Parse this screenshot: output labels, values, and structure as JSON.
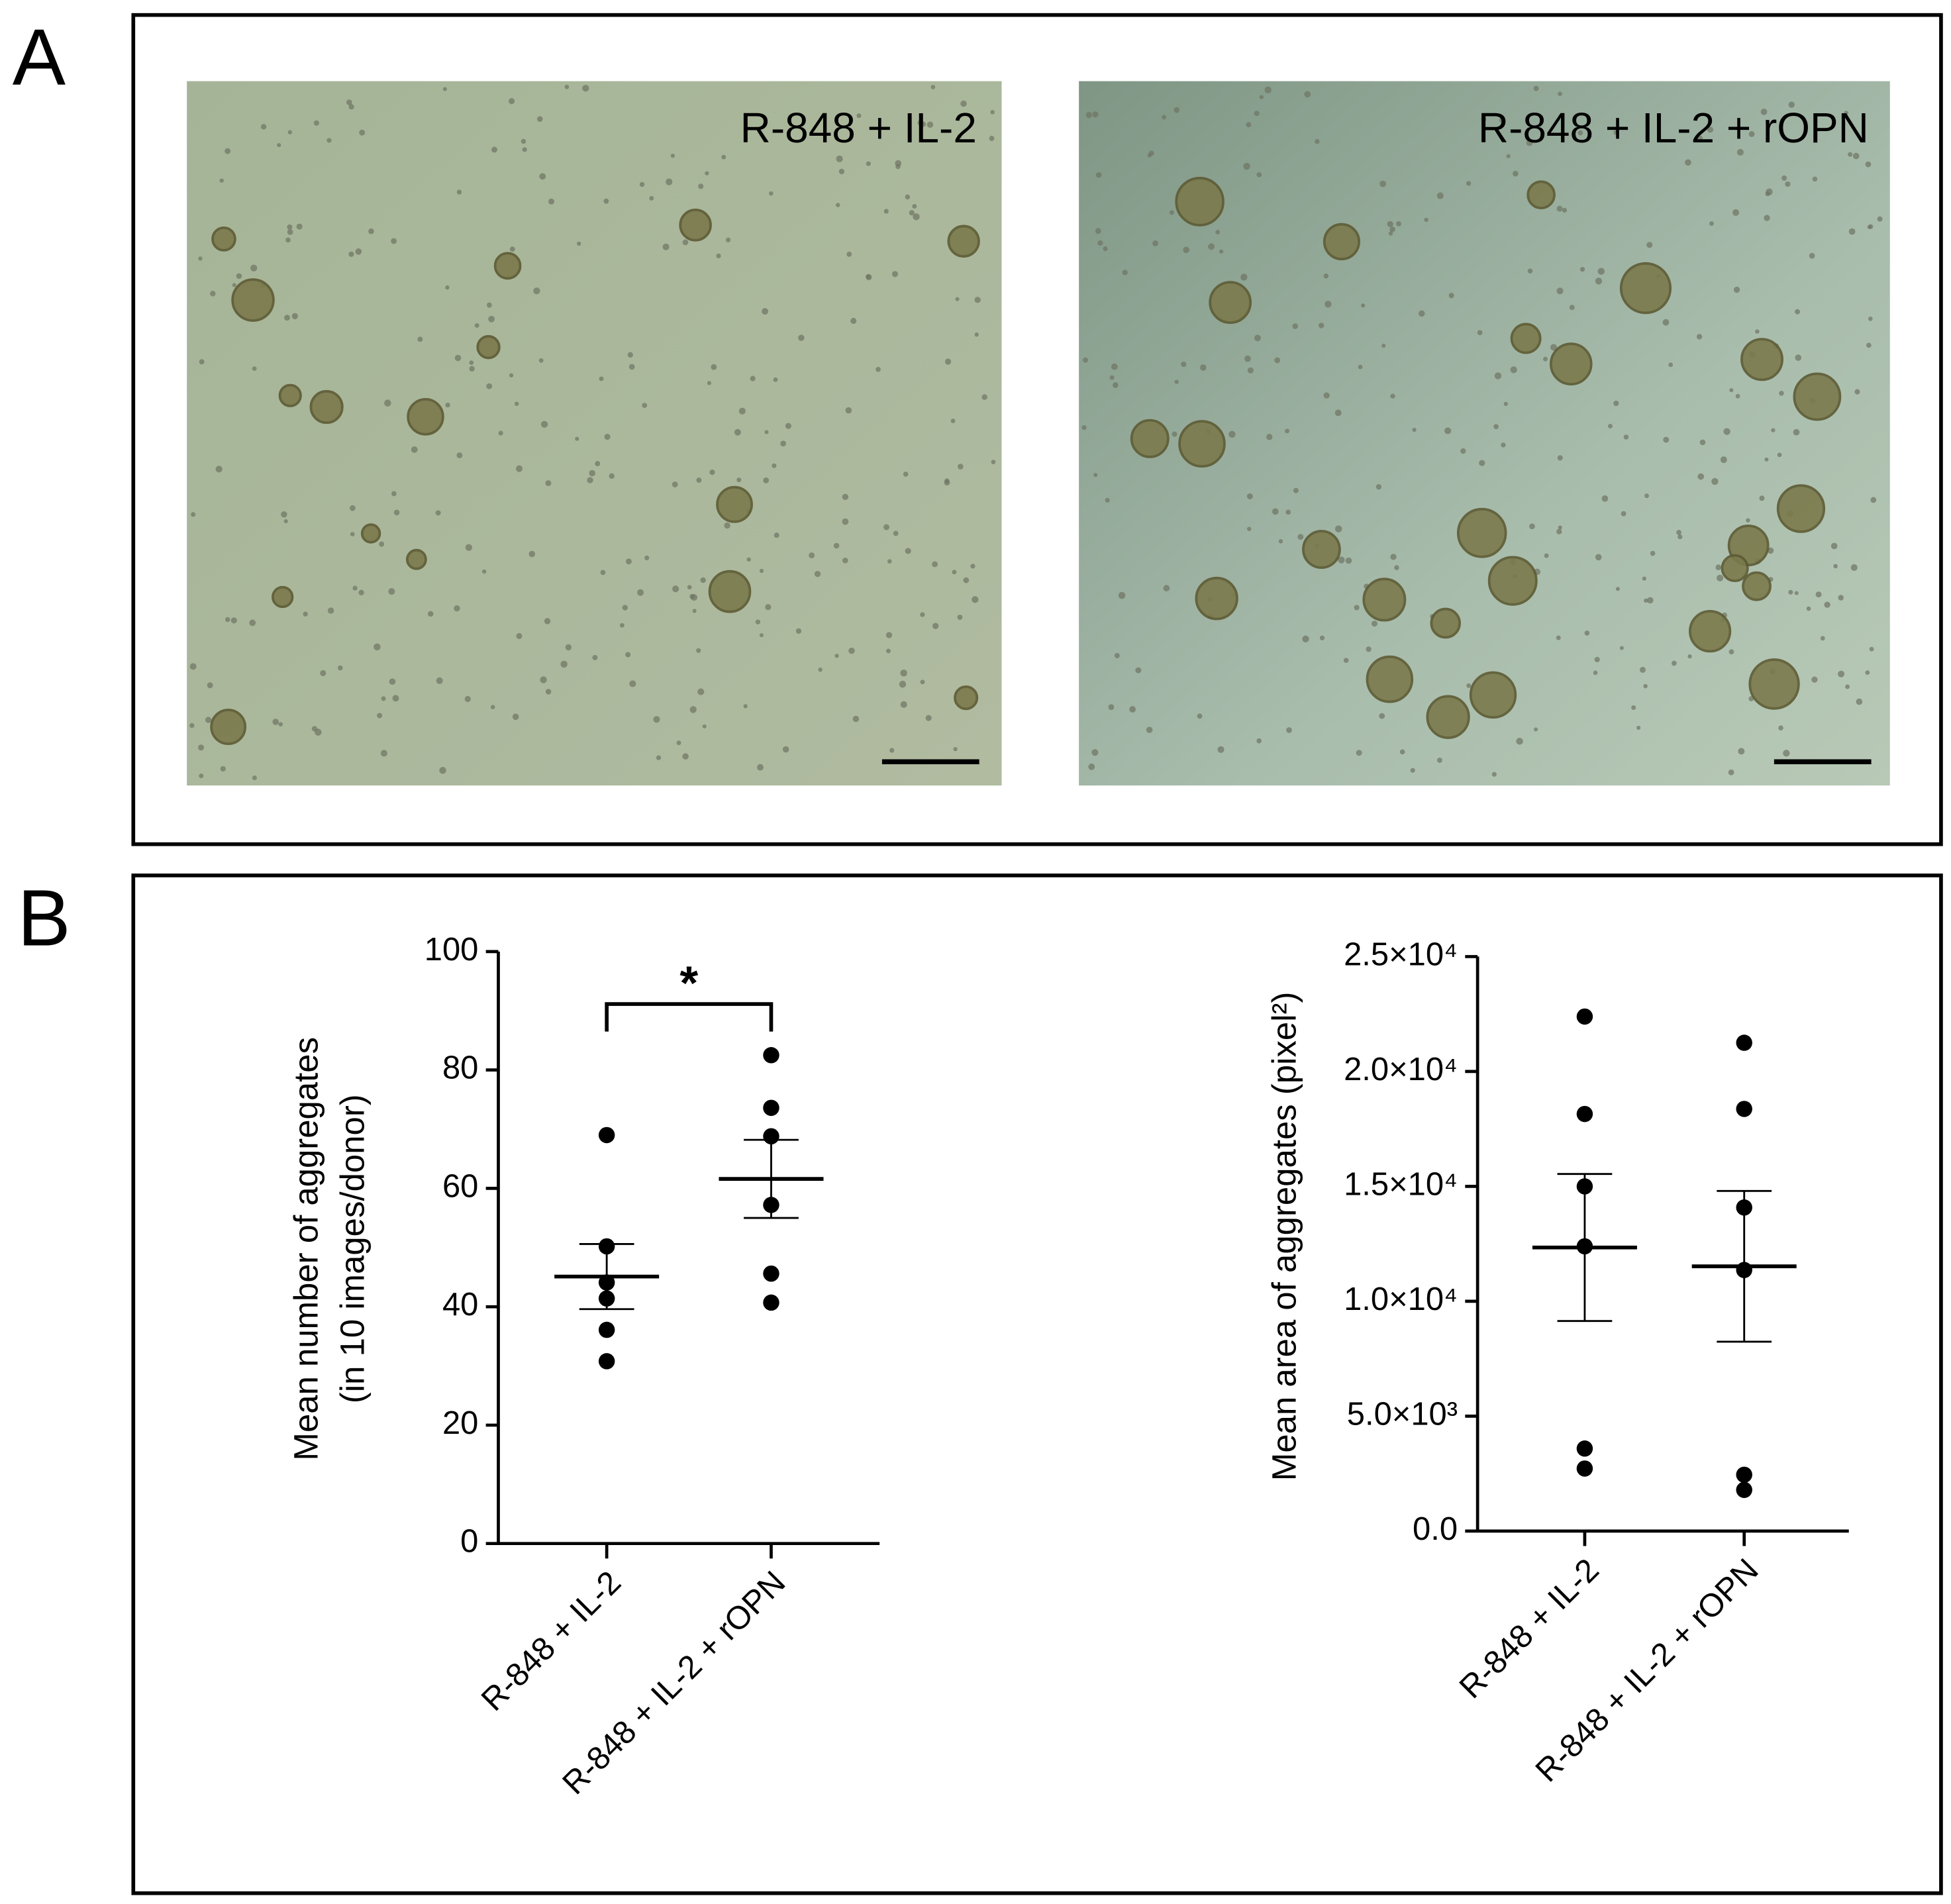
{
  "panel_labels": [
    "A",
    "B"
  ],
  "images": [
    {
      "caption": "R-848 + IL-2"
    },
    {
      "caption": "R-848 + IL-2 + rOPN"
    }
  ],
  "chart_data": [
    {
      "type": "scatter",
      "y_label": [
        "Mean number of aggregates",
        "(in 10 images/donor)"
      ],
      "categories": [
        "R-848 + IL-2",
        "R-848 + IL-2 + rOPN"
      ],
      "points": [
        [
          69,
          50.2,
          44.1,
          41.4,
          36.1,
          30.8
        ],
        [
          82.5,
          73.6,
          68.8,
          57.2,
          45.6,
          40.7
        ]
      ],
      "means": [
        45.1,
        61.6
      ],
      "sem": [
        5.5,
        6.6
      ],
      "ylim": [
        0,
        100
      ],
      "yticks": [
        0,
        20,
        40,
        60,
        80,
        100
      ],
      "annotation": "*",
      "color": "#000000"
    },
    {
      "type": "scatter",
      "y_label": [
        "Mean area of aggregates (pixel²)"
      ],
      "categories": [
        "R-848 + IL-2",
        "R-848 + IL-2 + rOPN"
      ],
      "points": [
        [
          22390,
          18150,
          15000,
          12390,
          3590,
          2720
        ],
        [
          21250,
          18370,
          14080,
          11360,
          2450,
          1790
        ]
      ],
      "means": [
        12340,
        11520
      ],
      "sem": [
        3200,
        3280
      ],
      "ylim": [
        0,
        25000
      ],
      "yticks": [
        {
          "value": 0,
          "label": "0.0"
        },
        {
          "value": 5000,
          "label": "5.0×10³"
        },
        {
          "value": 10000,
          "label": "1.0×10⁴"
        },
        {
          "value": 15000,
          "label": "1.5×10⁴"
        },
        {
          "value": 20000,
          "label": "2.0×10⁴"
        },
        {
          "value": 25000,
          "label": "2.5×10⁴"
        }
      ],
      "color": "#000000"
    }
  ]
}
